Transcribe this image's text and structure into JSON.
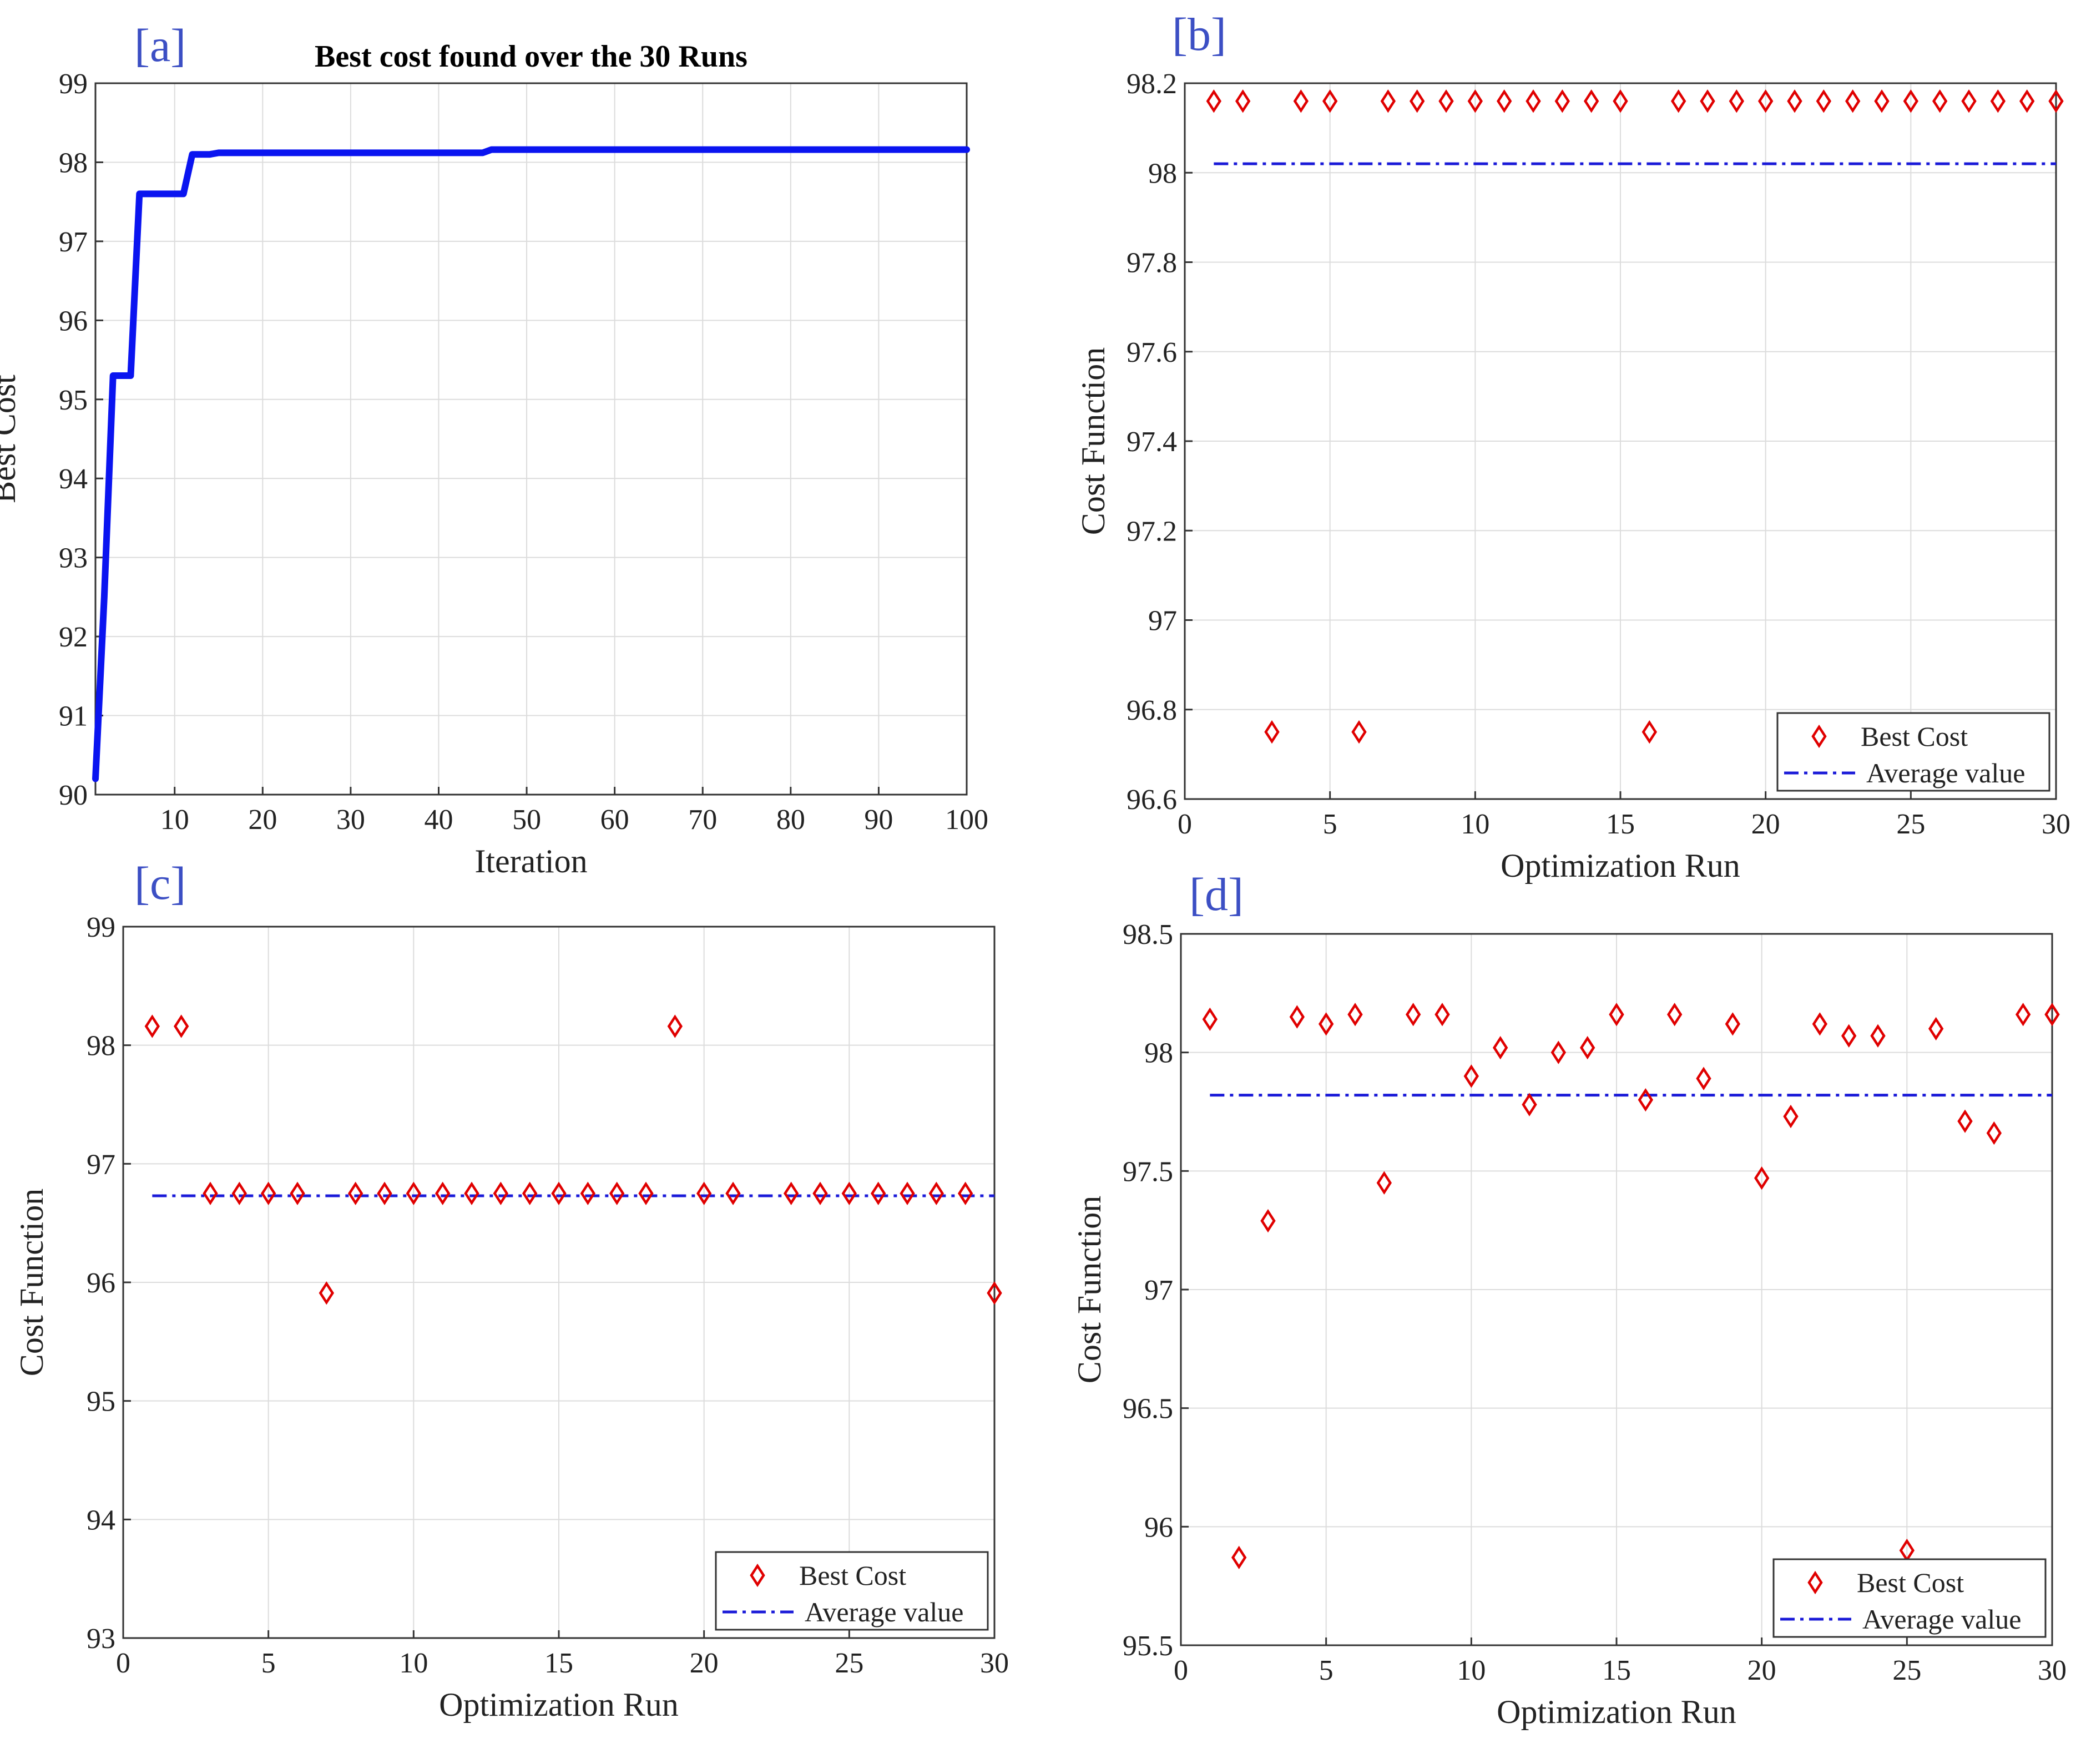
{
  "colors": {
    "line": "#0a14f0",
    "marker": "#e00000",
    "average": "#1a1ad8",
    "panel_label": "#3c4fc4",
    "grid": "#dcdcdc"
  },
  "chart_data": [
    {
      "panel_label": "[a]",
      "type": "line",
      "title": "Best cost found over the 30 Runs",
      "xlabel": "Iteration",
      "ylabel": "Best Cost",
      "xlim": [
        1,
        100
      ],
      "ylim": [
        90,
        99
      ],
      "xticks": [
        10,
        20,
        30,
        40,
        50,
        60,
        70,
        80,
        90,
        100
      ],
      "yticks": [
        90,
        91,
        92,
        93,
        94,
        95,
        96,
        97,
        98,
        99
      ],
      "grid": true,
      "series": [
        {
          "x": [
            1,
            2,
            3,
            5,
            6,
            11,
            12,
            14,
            15,
            45,
            46,
            100
          ],
          "y": [
            90.2,
            92.5,
            95.3,
            95.3,
            97.6,
            97.6,
            98.1,
            98.1,
            98.12,
            98.12,
            98.16,
            98.16
          ]
        }
      ]
    },
    {
      "panel_label": "[b]",
      "type": "scatter",
      "xlabel": "Optimization Run",
      "ylabel": "Cost Function",
      "xlim": [
        0,
        30
      ],
      "ylim": [
        96.6,
        98.2
      ],
      "xticks": [
        0,
        5,
        10,
        15,
        20,
        25,
        30
      ],
      "yticks": [
        96.6,
        96.8,
        97,
        97.2,
        97.4,
        97.6,
        97.8,
        98,
        98.2
      ],
      "grid": true,
      "legend_position": "bottom-right",
      "series": [
        {
          "name": "Best Cost",
          "x": [
            1,
            2,
            3,
            4,
            5,
            6,
            7,
            8,
            9,
            10,
            11,
            12,
            13,
            14,
            15,
            16,
            17,
            18,
            19,
            20,
            21,
            22,
            23,
            24,
            25,
            26,
            27,
            28,
            29,
            30
          ],
          "y": [
            98.16,
            98.16,
            96.75,
            98.16,
            98.16,
            96.75,
            98.16,
            98.16,
            98.16,
            98.16,
            98.16,
            98.16,
            98.16,
            98.16,
            98.16,
            96.75,
            98.16,
            98.16,
            98.16,
            98.16,
            98.16,
            98.16,
            98.16,
            98.16,
            98.16,
            98.16,
            98.16,
            98.16,
            98.16,
            98.16
          ]
        },
        {
          "name": "Average value",
          "x": [
            1,
            30
          ],
          "y": [
            98.02,
            98.02
          ]
        }
      ]
    },
    {
      "panel_label": "[c]",
      "type": "scatter",
      "xlabel": "Optimization Run",
      "ylabel": "Cost Function",
      "xlim": [
        0,
        30
      ],
      "ylim": [
        93,
        99
      ],
      "xticks": [
        0,
        5,
        10,
        15,
        20,
        25,
        30
      ],
      "yticks": [
        93,
        94,
        95,
        96,
        97,
        98,
        99
      ],
      "grid": true,
      "legend_position": "bottom-right",
      "series": [
        {
          "name": "Best Cost",
          "x": [
            1,
            2,
            3,
            4,
            5,
            6,
            7,
            8,
            9,
            10,
            11,
            12,
            13,
            14,
            15,
            16,
            17,
            18,
            19,
            20,
            21,
            23,
            24,
            25,
            26,
            27,
            28,
            29,
            30
          ],
          "y": [
            98.16,
            98.16,
            96.75,
            96.75,
            96.75,
            96.75,
            95.91,
            96.75,
            96.75,
            96.75,
            96.75,
            96.75,
            96.75,
            96.75,
            96.75,
            96.75,
            96.75,
            96.75,
            98.16,
            96.75,
            96.75,
            96.75,
            96.75,
            96.75,
            96.75,
            96.75,
            96.75,
            96.75,
            95.91
          ]
        },
        {
          "name": "Average value",
          "x": [
            1,
            30
          ],
          "y": [
            96.73,
            96.73
          ]
        }
      ]
    },
    {
      "panel_label": "[d]",
      "type": "scatter",
      "xlabel": "Optimization Run",
      "ylabel": "Cost Function",
      "xlim": [
        0,
        30
      ],
      "ylim": [
        95.5,
        98.5
      ],
      "xticks": [
        0,
        5,
        10,
        15,
        20,
        25,
        30
      ],
      "yticks": [
        95.5,
        96,
        96.5,
        97,
        97.5,
        98,
        98.5
      ],
      "grid": true,
      "legend_position": "bottom-right",
      "series": [
        {
          "name": "Best Cost",
          "x": [
            1,
            2,
            3,
            4,
            5,
            6,
            7,
            8,
            9,
            10,
            11,
            12,
            13,
            14,
            15,
            16,
            17,
            18,
            19,
            20,
            21,
            22,
            23,
            24,
            25,
            26,
            27,
            28,
            29,
            30
          ],
          "y": [
            98.14,
            95.87,
            97.29,
            98.15,
            98.12,
            98.16,
            97.45,
            98.16,
            98.16,
            97.9,
            98.02,
            97.78,
            98.0,
            98.02,
            98.16,
            97.8,
            98.16,
            97.89,
            98.12,
            97.47,
            97.73,
            98.12,
            98.07,
            98.07,
            95.9,
            98.1,
            97.71,
            97.66,
            98.16,
            98.16
          ]
        },
        {
          "name": "Average value",
          "x": [
            1,
            30
          ],
          "y": [
            97.82,
            97.82
          ]
        }
      ]
    }
  ]
}
